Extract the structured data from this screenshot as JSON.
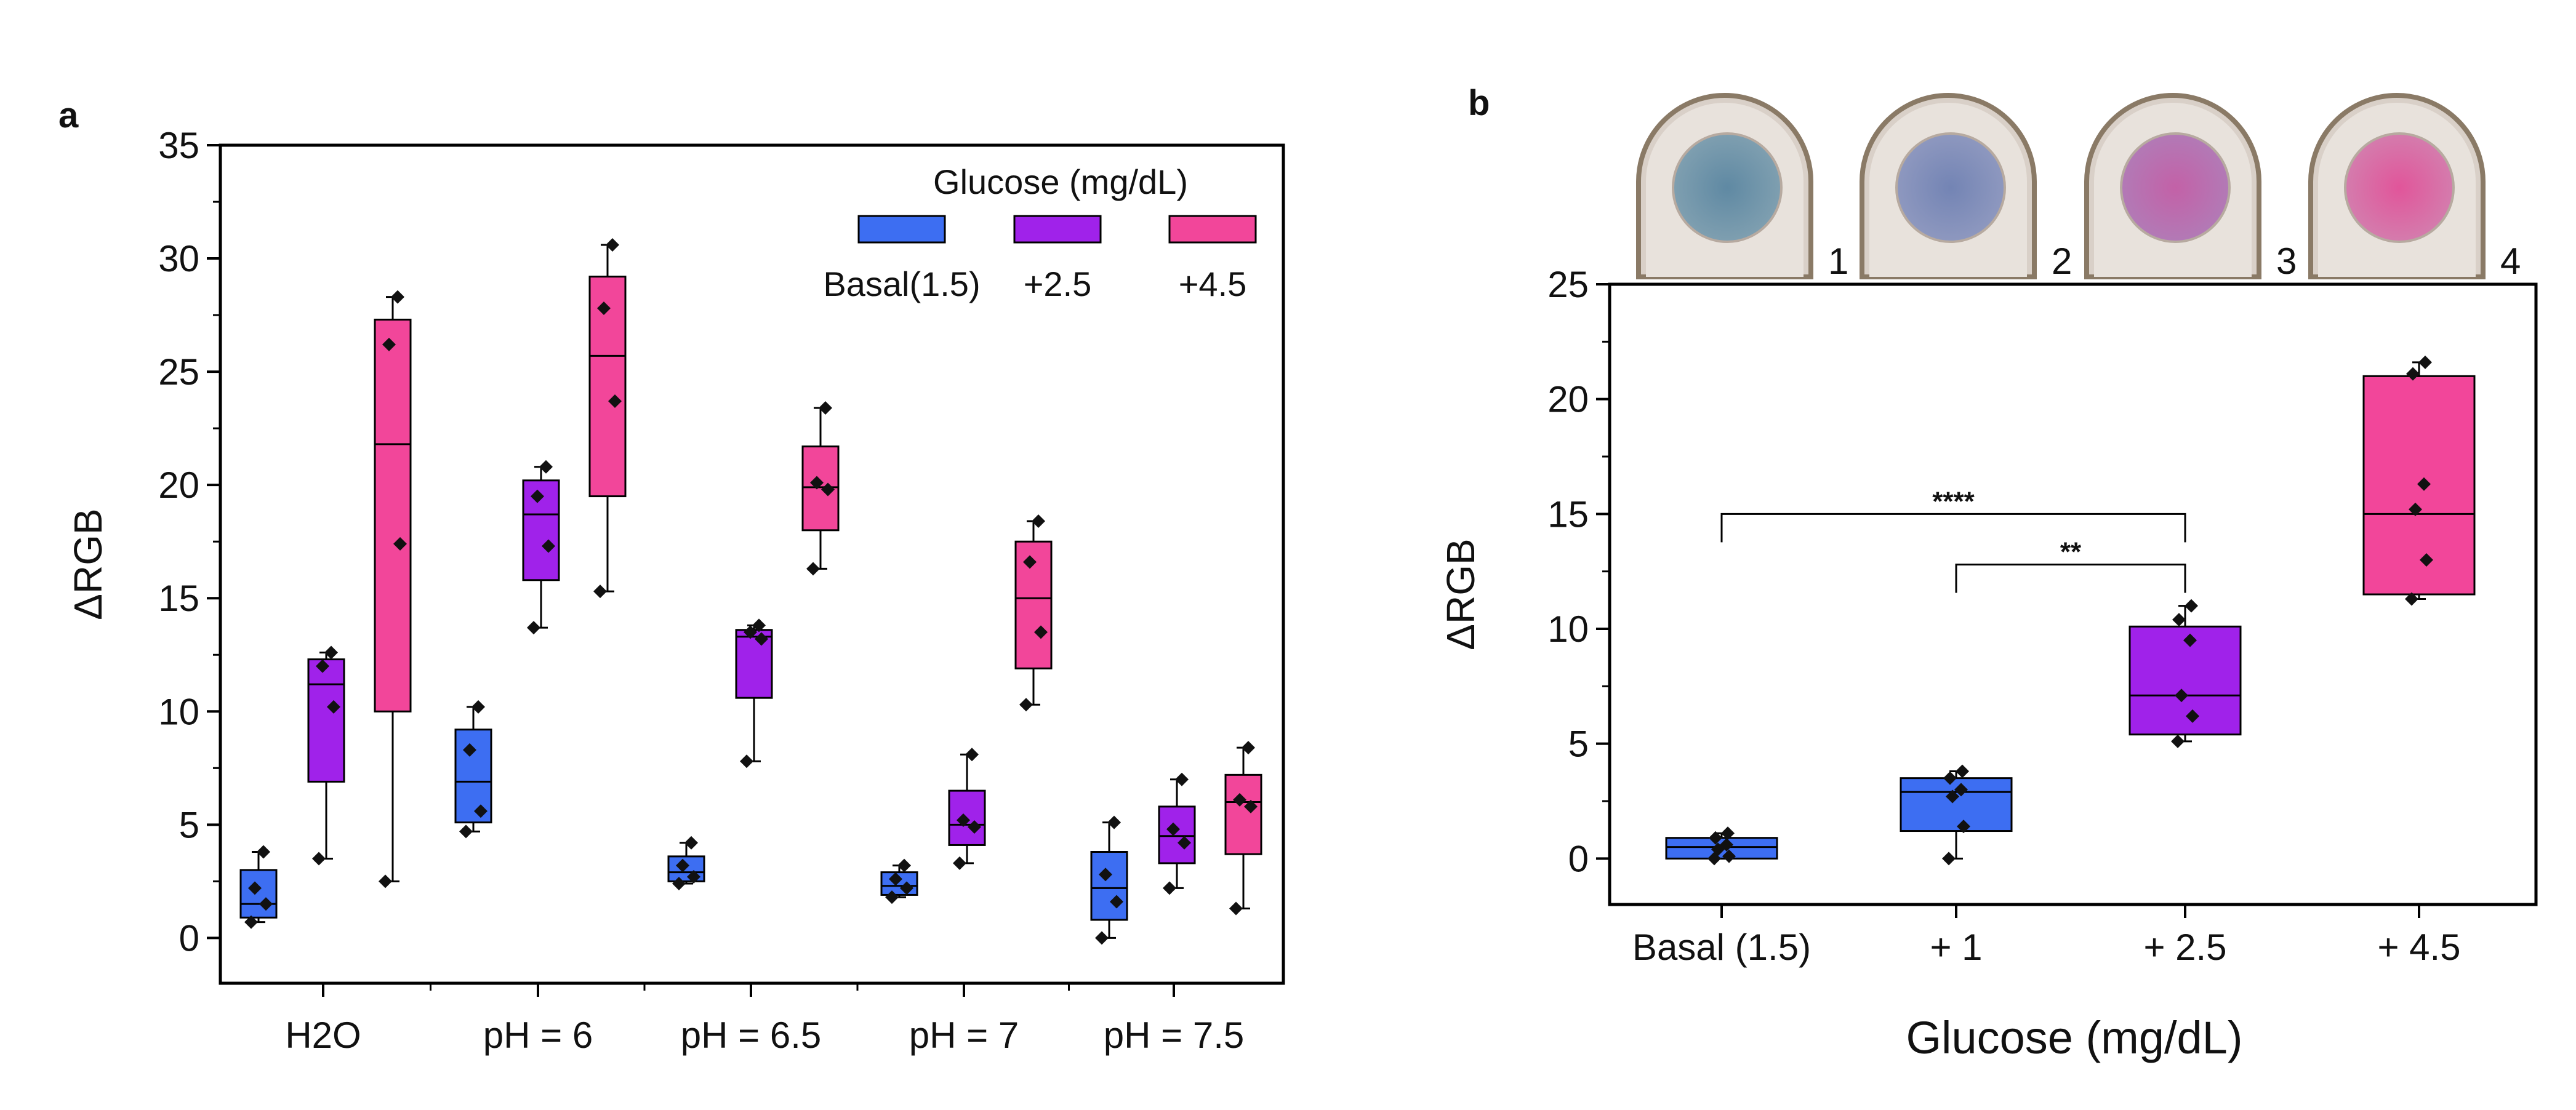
{
  "panel_a_label": "a",
  "panel_b_label": "b",
  "well_labels": [
    "1",
    "2",
    "3",
    "4"
  ],
  "colors": {
    "basal": "#3d6ef2",
    "plus_2_5": "#a022ea",
    "plus_4_5": "#f2469a",
    "plus_1": "#3d6ef2"
  },
  "chart_data": [
    {
      "type": "box",
      "panel": "a",
      "title": "",
      "xlabel": "",
      "ylabel": "ΔRGB",
      "ylim": [
        -2,
        35
      ],
      "yticks": [
        0,
        5,
        10,
        15,
        20,
        25,
        30,
        35
      ],
      "categories": [
        "H2O",
        "pH = 6",
        "pH = 6.5",
        "pH = 7",
        "pH = 7.5"
      ],
      "legend": {
        "title": "Glucose (mg/dL)",
        "position": "top-right",
        "entries": [
          "Basal(1.5)",
          "+2.5",
          "+4.5"
        ]
      },
      "series": [
        {
          "name": "Basal(1.5)",
          "boxes": [
            {
              "min": 0.7,
              "q1": 0.9,
              "median": 1.5,
              "q3": 3.0,
              "max": 3.8,
              "points": [
                0.7,
                1.5,
                2.2,
                3.8
              ]
            },
            {
              "min": 4.7,
              "q1": 5.1,
              "median": 6.9,
              "q3": 9.2,
              "max": 10.2,
              "points": [
                4.7,
                5.6,
                8.3,
                10.2
              ]
            },
            {
              "min": 2.4,
              "q1": 2.5,
              "median": 2.9,
              "q3": 3.6,
              "max": 4.2,
              "points": [
                2.4,
                2.7,
                3.2,
                4.2
              ]
            },
            {
              "min": 1.8,
              "q1": 1.9,
              "median": 2.3,
              "q3": 2.9,
              "max": 3.2,
              "points": [
                1.8,
                2.2,
                2.6,
                3.2
              ]
            },
            {
              "min": 0.0,
              "q1": 0.8,
              "median": 2.2,
              "q3": 3.8,
              "max": 5.1,
              "points": [
                0.0,
                1.6,
                2.8,
                5.1
              ]
            }
          ]
        },
        {
          "name": "+2.5",
          "boxes": [
            {
              "min": 3.5,
              "q1": 6.9,
              "median": 11.2,
              "q3": 12.3,
              "max": 12.6,
              "points": [
                3.5,
                10.2,
                12.0,
                12.6
              ]
            },
            {
              "min": 13.7,
              "q1": 15.8,
              "median": 18.7,
              "q3": 20.2,
              "max": 20.8,
              "points": [
                13.7,
                17.3,
                19.5,
                20.8
              ]
            },
            {
              "min": 7.8,
              "q1": 10.6,
              "median": 13.3,
              "q3": 13.6,
              "max": 13.8,
              "points": [
                7.8,
                13.2,
                13.5,
                13.8
              ]
            },
            {
              "min": 3.3,
              "q1": 4.1,
              "median": 5.0,
              "q3": 6.5,
              "max": 8.1,
              "points": [
                3.3,
                4.9,
                5.2,
                8.1
              ]
            },
            {
              "min": 2.2,
              "q1": 3.3,
              "median": 4.5,
              "q3": 5.8,
              "max": 7.0,
              "points": [
                2.2,
                4.2,
                4.8,
                7.0
              ]
            }
          ]
        },
        {
          "name": "+4.5",
          "boxes": [
            {
              "min": 2.5,
              "q1": 10.0,
              "median": 21.8,
              "q3": 27.3,
              "max": 28.3,
              "points": [
                2.5,
                17.4,
                26.2,
                28.3
              ]
            },
            {
              "min": 15.3,
              "q1": 19.5,
              "median": 25.7,
              "q3": 29.2,
              "max": 30.6,
              "points": [
                15.3,
                23.7,
                27.8,
                30.6
              ]
            },
            {
              "min": 16.3,
              "q1": 18.0,
              "median": 19.9,
              "q3": 21.7,
              "max": 23.4,
              "points": [
                16.3,
                19.8,
                20.1,
                23.4
              ]
            },
            {
              "min": 10.3,
              "q1": 11.9,
              "median": 15.0,
              "q3": 17.5,
              "max": 18.4,
              "points": [
                10.3,
                13.5,
                16.6,
                18.4
              ]
            },
            {
              "min": 1.3,
              "q1": 3.7,
              "median": 6.0,
              "q3": 7.2,
              "max": 8.4,
              "points": [
                1.3,
                5.8,
                6.1,
                8.4
              ]
            }
          ]
        }
      ]
    },
    {
      "type": "box",
      "panel": "b",
      "title": "",
      "xlabel": "Glucose (mg/dL)",
      "ylabel": "ΔRGB",
      "ylim": [
        -2,
        25
      ],
      "yticks": [
        0,
        5,
        10,
        15,
        20,
        25
      ],
      "categories": [
        "Basal (1.5)",
        "+ 1",
        "+ 2.5",
        "+ 4.5"
      ],
      "boxes": [
        {
          "category": "Basal (1.5)",
          "color_key": "basal",
          "min": 0.0,
          "q1": 0.0,
          "median": 0.5,
          "q3": 0.9,
          "max": 1.1,
          "points": [
            0.0,
            0.1,
            0.4,
            0.6,
            0.9,
            1.1
          ]
        },
        {
          "category": "+ 1",
          "color_key": "plus_1",
          "min": 0.0,
          "q1": 1.2,
          "median": 2.9,
          "q3": 3.5,
          "max": 3.8,
          "points": [
            0.0,
            1.4,
            2.7,
            3.0,
            3.5,
            3.8
          ]
        },
        {
          "category": "+ 2.5",
          "color_key": "plus_2_5",
          "min": 5.1,
          "q1": 5.4,
          "median": 7.1,
          "q3": 10.1,
          "max": 11.0,
          "points": [
            5.1,
            6.2,
            7.1,
            9.5,
            10.4,
            11.0
          ]
        },
        {
          "category": "+ 4.5",
          "color_key": "plus_4_5",
          "min": 11.3,
          "q1": 11.5,
          "median": 15.0,
          "q3": 21.0,
          "max": 21.6,
          "points": [
            11.3,
            13.0,
            15.2,
            16.3,
            21.1,
            21.6
          ]
        }
      ],
      "significance": [
        {
          "from": "Basal (1.5)",
          "to": "+ 2.5",
          "y": 15.0,
          "label": "****"
        },
        {
          "from": "+ 1",
          "to": "+ 2.5",
          "y": 12.8,
          "label": "**"
        }
      ]
    }
  ]
}
